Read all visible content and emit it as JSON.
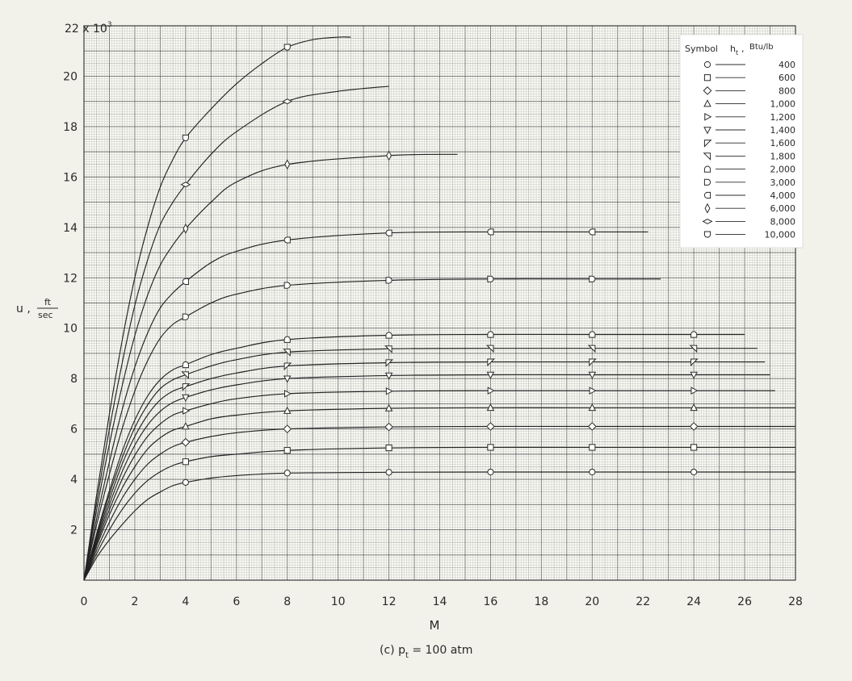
{
  "chart_data": {
    "type": "line",
    "caption": "(c) p",
    "caption_sub": "t",
    "caption_rest": " = 100 atm",
    "xlabel": "M",
    "ylabel_prefix": "u ,",
    "ylabel_num": "ft",
    "ylabel_den": "sec",
    "y_multiplier": "22 x 10",
    "y_multiplier_exp": "3",
    "xlim": [
      0,
      28
    ],
    "ylim": [
      0,
      22
    ],
    "x_ticks": [
      0,
      2,
      4,
      6,
      8,
      10,
      12,
      14,
      16,
      18,
      20,
      22,
      24,
      26,
      28
    ],
    "y_ticks": [
      2,
      4,
      6,
      8,
      10,
      12,
      14,
      16,
      18,
      20
    ],
    "grid": true,
    "legend": {
      "position": "top-right",
      "header_symbol": "Symbol",
      "header_var": "h",
      "header_var_sub": "t",
      "header_units": "Btu/lb"
    },
    "series": [
      {
        "name": "400",
        "symbol": "circle",
        "x": [
          0,
          0.5,
          1,
          1.5,
          2,
          2.5,
          3,
          3.5,
          4,
          5,
          6,
          8,
          12,
          16,
          20,
          24,
          28
        ],
        "y": [
          0,
          0.9,
          1.6,
          2.2,
          2.75,
          3.2,
          3.5,
          3.75,
          3.88,
          4.05,
          4.15,
          4.25,
          4.28,
          4.29,
          4.29,
          4.29,
          4.29
        ],
        "markers": [
          4,
          8,
          12,
          16,
          20,
          24
        ]
      },
      {
        "name": "600",
        "symbol": "square",
        "x": [
          0,
          0.5,
          1,
          1.5,
          2,
          2.5,
          3,
          3.5,
          4,
          5,
          6,
          8,
          12,
          16,
          20,
          24,
          28
        ],
        "y": [
          0,
          1.05,
          2.0,
          2.8,
          3.45,
          3.95,
          4.3,
          4.55,
          4.7,
          4.9,
          5.0,
          5.15,
          5.25,
          5.27,
          5.27,
          5.27,
          5.27
        ],
        "markers": [
          4,
          8,
          12,
          16,
          20,
          24
        ]
      },
      {
        "name": "800",
        "symbol": "diamond",
        "x": [
          0,
          0.5,
          1,
          1.5,
          2,
          2.5,
          3,
          3.5,
          4,
          5,
          6,
          8,
          12,
          16,
          20,
          24,
          28
        ],
        "y": [
          0,
          1.2,
          2.3,
          3.25,
          4.0,
          4.6,
          5.0,
          5.3,
          5.47,
          5.7,
          5.85,
          6.0,
          6.08,
          6.1,
          6.1,
          6.1,
          6.1
        ],
        "markers": [
          4,
          8,
          12,
          16,
          20,
          24
        ]
      },
      {
        "name": "1,000",
        "symbol": "triangle-up",
        "x": [
          0,
          0.5,
          1,
          1.5,
          2,
          2.5,
          3,
          3.5,
          4,
          5,
          6,
          8,
          12,
          16,
          20,
          24,
          28
        ],
        "y": [
          0,
          1.35,
          2.6,
          3.65,
          4.5,
          5.2,
          5.65,
          5.95,
          6.1,
          6.4,
          6.55,
          6.72,
          6.82,
          6.84,
          6.84,
          6.84,
          6.84
        ],
        "markers": [
          4,
          8,
          12,
          16,
          20,
          24
        ]
      },
      {
        "name": "1,200",
        "symbol": "triangle-right",
        "x": [
          0,
          0.5,
          1,
          1.5,
          2,
          2.5,
          3,
          3.5,
          4,
          5,
          6,
          8,
          12,
          16,
          20,
          24,
          27.2
        ],
        "y": [
          0,
          1.45,
          2.8,
          4.0,
          4.95,
          5.7,
          6.2,
          6.55,
          6.72,
          7.0,
          7.2,
          7.4,
          7.5,
          7.52,
          7.52,
          7.52,
          7.52
        ],
        "markers": [
          4,
          8,
          12,
          16,
          20,
          24
        ]
      },
      {
        "name": "1,400",
        "symbol": "triangle-down",
        "x": [
          0,
          0.5,
          1,
          1.5,
          2,
          2.5,
          3,
          3.5,
          4,
          5,
          6,
          8,
          12,
          16,
          20,
          24,
          27
        ],
        "y": [
          0,
          1.55,
          3.0,
          4.3,
          5.35,
          6.15,
          6.7,
          7.05,
          7.25,
          7.55,
          7.75,
          8.0,
          8.12,
          8.15,
          8.15,
          8.15,
          8.15
        ],
        "markers": [
          4,
          8,
          12,
          16,
          20,
          24
        ]
      },
      {
        "name": "1,600",
        "symbol": "triangle-skew",
        "x": [
          0,
          0.5,
          1,
          1.5,
          2,
          2.5,
          3,
          3.5,
          4,
          5,
          6,
          8,
          12,
          16,
          20,
          24,
          26.8
        ],
        "y": [
          0,
          1.65,
          3.2,
          4.6,
          5.7,
          6.55,
          7.15,
          7.5,
          7.68,
          8.0,
          8.22,
          8.5,
          8.63,
          8.66,
          8.66,
          8.66,
          8.66
        ],
        "markers": [
          4,
          8,
          12,
          16,
          20,
          24
        ]
      },
      {
        "name": "1,800",
        "symbol": "triangle-skew-left",
        "x": [
          0,
          0.5,
          1,
          1.5,
          2,
          2.5,
          3,
          3.5,
          4,
          5,
          6,
          8,
          12,
          16,
          20,
          24,
          26.5
        ],
        "y": [
          0,
          1.75,
          3.4,
          4.85,
          6.05,
          6.95,
          7.6,
          7.95,
          8.15,
          8.5,
          8.75,
          9.05,
          9.18,
          9.2,
          9.2,
          9.2,
          9.2
        ],
        "markers": [
          4,
          8,
          12,
          16,
          20,
          24
        ]
      },
      {
        "name": "2,000",
        "symbol": "semicircle-up",
        "x": [
          0,
          0.5,
          1,
          1.5,
          2,
          2.5,
          3,
          3.5,
          4,
          5,
          6,
          8,
          12,
          16,
          20,
          24,
          26
        ],
        "y": [
          0,
          1.85,
          3.55,
          5.1,
          6.35,
          7.3,
          7.95,
          8.35,
          8.55,
          8.95,
          9.2,
          9.55,
          9.72,
          9.75,
          9.75,
          9.75,
          9.75
        ],
        "markers": [
          4,
          8,
          12,
          16,
          20,
          24
        ]
      },
      {
        "name": "3,000",
        "symbol": "semicircle-right",
        "x": [
          0,
          0.5,
          1,
          1.5,
          2,
          2.5,
          3,
          3.5,
          4,
          5,
          6,
          8,
          12,
          16,
          20,
          22.7
        ],
        "y": [
          0,
          2.2,
          4.2,
          6.0,
          7.5,
          8.7,
          9.6,
          10.15,
          10.45,
          11.0,
          11.35,
          11.7,
          11.9,
          11.95,
          11.95,
          11.95
        ],
        "markers": [
          4,
          8,
          12,
          16,
          20
        ]
      },
      {
        "name": "4,000",
        "symbol": "semicircle-left",
        "x": [
          0,
          0.5,
          1,
          1.5,
          2,
          2.5,
          3,
          3.5,
          4,
          5,
          6,
          8,
          12,
          16,
          20,
          22.2
        ],
        "y": [
          0,
          2.45,
          4.7,
          6.75,
          8.45,
          9.8,
          10.8,
          11.4,
          11.85,
          12.6,
          13.05,
          13.5,
          13.78,
          13.82,
          13.82,
          13.82
        ],
        "markers": [
          4,
          8,
          12,
          16,
          20
        ]
      },
      {
        "name": "6,000",
        "symbol": "diamond-narrow",
        "x": [
          0,
          0.5,
          1,
          1.5,
          2,
          2.5,
          3,
          3.5,
          4,
          5,
          6,
          8,
          12,
          14.7
        ],
        "y": [
          0,
          2.8,
          5.4,
          7.7,
          9.7,
          11.3,
          12.5,
          13.3,
          13.95,
          15.0,
          15.8,
          16.5,
          16.85,
          16.9
        ],
        "markers": [
          4,
          8,
          12
        ]
      },
      {
        "name": "8,000",
        "symbol": "diamond-wide",
        "x": [
          0,
          0.5,
          1,
          1.5,
          2,
          2.5,
          3,
          3.5,
          4,
          5,
          6,
          8,
          10,
          12
        ],
        "y": [
          0,
          3.1,
          6.0,
          8.6,
          10.9,
          12.7,
          14.1,
          15.0,
          15.7,
          16.9,
          17.8,
          19.0,
          19.4,
          19.6
        ],
        "markers": [
          4,
          8
        ]
      },
      {
        "name": "10,000",
        "symbol": "semicircle-down",
        "x": [
          0,
          0.5,
          1,
          1.5,
          2,
          2.5,
          3,
          3.5,
          4,
          5,
          6,
          7,
          8,
          9,
          10,
          10.5
        ],
        "y": [
          0,
          3.4,
          6.6,
          9.5,
          12.0,
          14.0,
          15.6,
          16.7,
          17.55,
          18.7,
          19.7,
          20.5,
          21.15,
          21.45,
          21.55,
          21.55
        ],
        "markers": [
          4,
          8
        ]
      }
    ]
  }
}
